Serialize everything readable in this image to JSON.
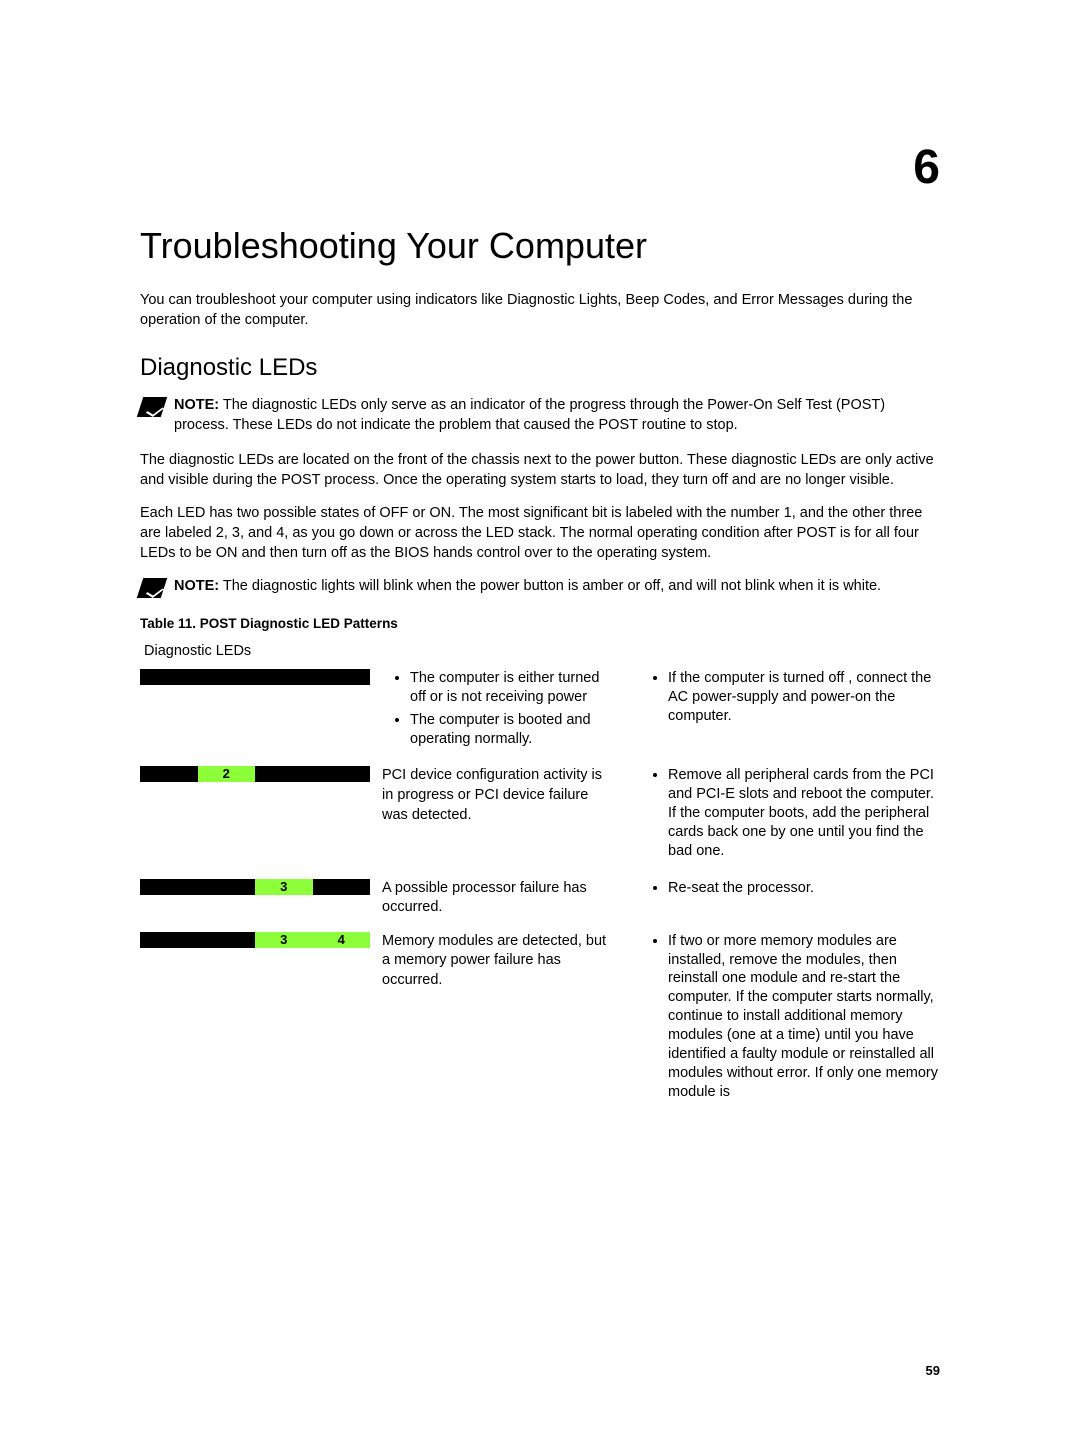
{
  "chapter_number": "6",
  "title": "Troubleshooting Your Computer",
  "intro": "You can troubleshoot your computer using indicators like Diagnostic Lights, Beep Codes, and Error Messages during the operation of the computer.",
  "section_heading": "Diagnostic LEDs",
  "note1": {
    "label": "NOTE:",
    "text": " The diagnostic LEDs only serve as an indicator of the progress through the Power-On Self Test (POST) process. These LEDs do not indicate the problem that caused the POST routine to stop."
  },
  "body_para1": "The diagnostic LEDs are located on the front of the chassis next to the power button. These diagnostic LEDs are only active and visible during the POST process. Once the operating system starts to load, they turn off and are no longer visible.",
  "body_para2": "Each LED has two possible states of OFF or ON. The most significant bit is labeled with the number 1, and the other three are labeled 2, 3, and 4, as you go down or across the LED stack. The normal operating condition after POST is for all four LEDs to be ON and then turn off as the BIOS hands control over to the operating system.",
  "note2": {
    "label": "NOTE:",
    "text": " The diagnostic lights will blink when the power button is amber or off, and will not blink when it is white."
  },
  "table_caption": "Table 11. POST Diagnostic LED Patterns",
  "column_header": "Diagnostic LEDs",
  "led_colors": {
    "off_bg": "#000000",
    "on_bg": "#8cff3a",
    "on_text": "#000000",
    "off_text": "#8cff3a"
  },
  "rows": [
    {
      "leds": [
        {
          "label": "",
          "on": false
        },
        {
          "label": "",
          "on": false
        },
        {
          "label": "",
          "on": false
        },
        {
          "label": "",
          "on": false
        }
      ],
      "desc_list": [
        "The computer is either turned off or is not receiving power",
        "The computer is booted and operating normally."
      ],
      "action_list": [
        "If the computer is turned off , connect the AC power-supply and power-on the computer."
      ]
    },
    {
      "leds": [
        {
          "label": "",
          "on": false
        },
        {
          "label": "2",
          "on": true
        },
        {
          "label": "",
          "on": false
        },
        {
          "label": "",
          "on": false
        }
      ],
      "desc_text": "PCI device configuration activity is in progress or PCI device failure was detected.",
      "action_list": [
        "Remove all peripheral cards from the PCI and PCI-E slots and reboot the computer. If the computer boots, add the peripheral cards back one by one until you find the bad one."
      ]
    },
    {
      "leds": [
        {
          "label": "",
          "on": false
        },
        {
          "label": "",
          "on": false
        },
        {
          "label": "3",
          "on": true
        },
        {
          "label": "",
          "on": false
        }
      ],
      "desc_text": "A possible processor failure has occurred.",
      "action_list": [
        "Re-seat the processor."
      ]
    },
    {
      "leds": [
        {
          "label": "",
          "on": false
        },
        {
          "label": "",
          "on": false
        },
        {
          "label": "3",
          "on": true
        },
        {
          "label": "4",
          "on": true
        }
      ],
      "desc_text": "Memory modules are detected, but a memory power failure has occurred.",
      "action_list": [
        "If two or more memory modules are installed, remove the modules, then reinstall one module and re-start the computer. If the computer starts normally, continue to install additional memory modules (one at a time) until you have identified a faulty module or reinstalled all modules without error. If only one memory module is"
      ]
    }
  ],
  "page_number": "59"
}
